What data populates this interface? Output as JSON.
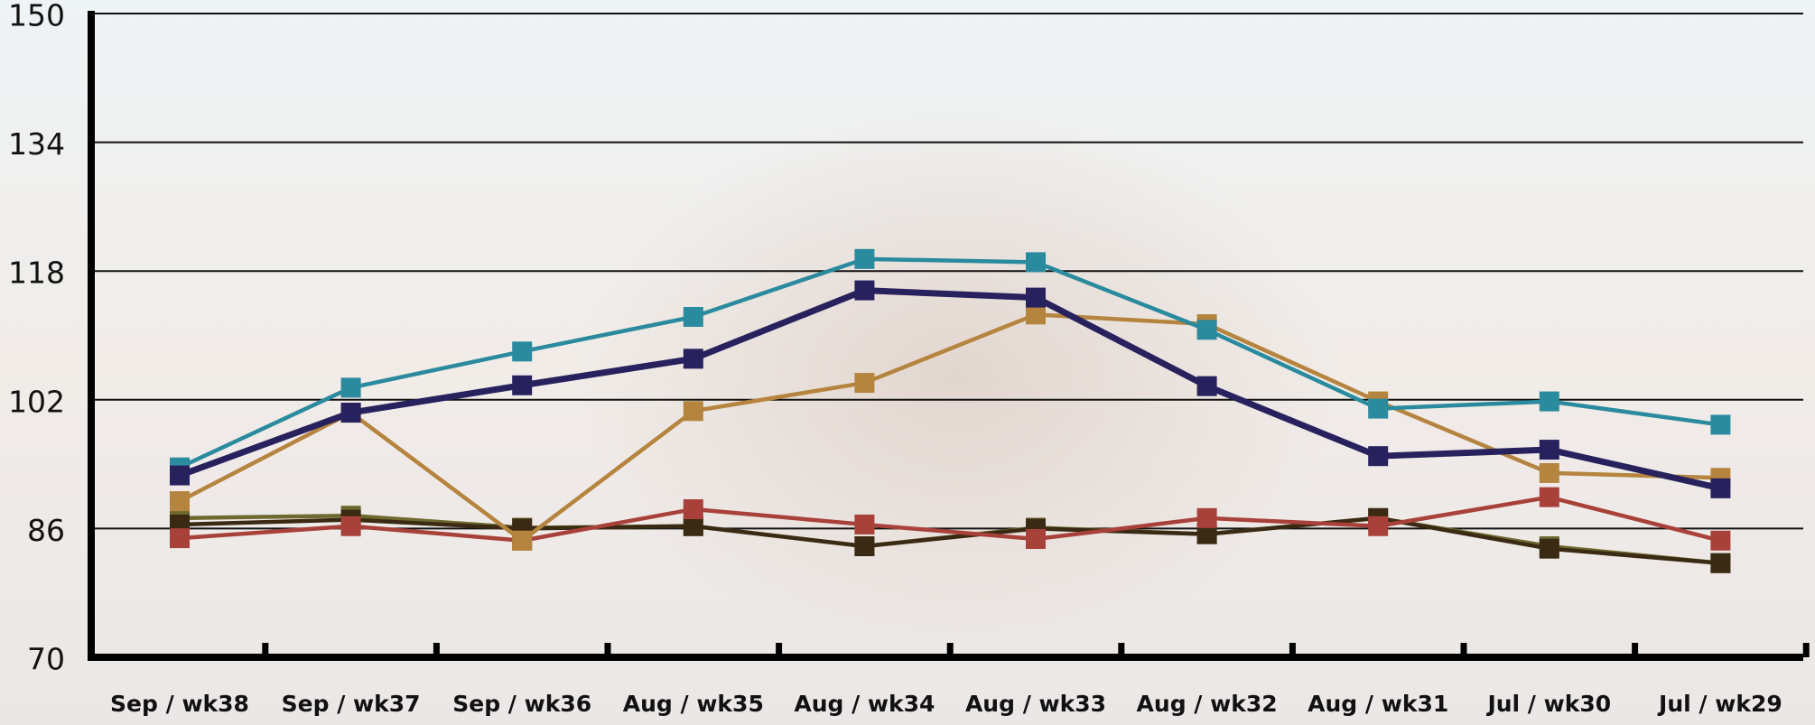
{
  "chart_data": {
    "type": "line",
    "categories": [
      "Sep / wk38",
      "Sep / wk37",
      "Sep / wk36",
      "Aug / wk35",
      "Aug / wk34",
      "Aug / wk33",
      "Aug / wk32",
      "Aug / wk31",
      "Jul / wk30",
      "Jul / wk29"
    ],
    "series": [
      {
        "color": "#6e6a2e",
        "values": [
          87.3,
          87.6,
          86.1,
          86.3,
          83.8,
          86.1,
          85.3,
          87.3,
          83.8,
          81.7
        ]
      },
      {
        "color": "#3a2a14",
        "values": [
          86.5,
          87.1,
          86.0,
          86.3,
          83.8,
          86.0,
          85.3,
          87.3,
          83.5,
          81.7
        ]
      },
      {
        "color": "#a8413a",
        "values": [
          84.8,
          86.3,
          84.5,
          88.4,
          86.5,
          84.7,
          87.3,
          86.3,
          89.9,
          84.5
        ]
      },
      {
        "color": "#b5843f",
        "values": [
          89.4,
          100.4,
          84.5,
          100.6,
          104.1,
          112.6,
          111.4,
          101.8,
          92.9,
          92.3
        ]
      },
      {
        "color": "#2a8a9e",
        "values": [
          93.6,
          103.5,
          108.0,
          112.3,
          119.5,
          119.1,
          110.7,
          100.9,
          101.8,
          98.9
        ]
      },
      {
        "color": "#27215e",
        "values": [
          92.6,
          100.4,
          103.8,
          107.1,
          115.6,
          114.7,
          103.7,
          95.0,
          95.8,
          91.0
        ]
      }
    ],
    "ylim": [
      70,
      150
    ],
    "yticks": [
      70,
      86,
      102,
      118,
      134,
      150
    ],
    "grid": true
  }
}
